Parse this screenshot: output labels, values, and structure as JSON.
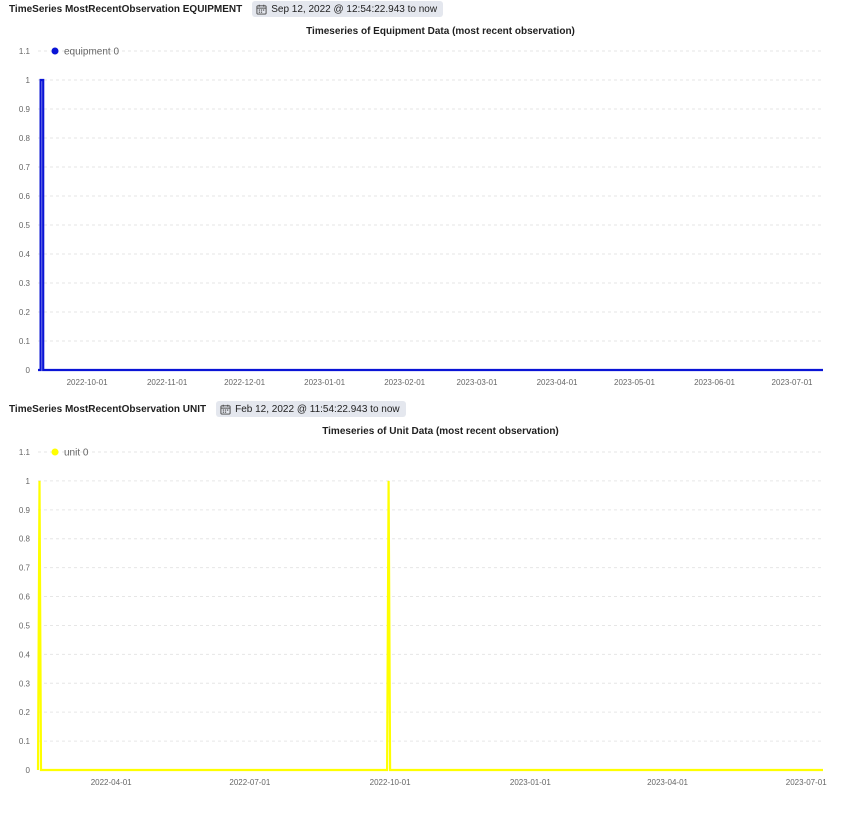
{
  "panels": [
    {
      "header_title": "TimeSeries MostRecentObservation EQUIPMENT",
      "range_label": "Sep 12, 2022 @ 12:54:22.943 to now",
      "range_icon": "calendar-icon"
    },
    {
      "header_title": "TimeSeries MostRecentObservation UNIT",
      "range_label": "Feb 12, 2022 @ 11:54:22.943 to now",
      "range_icon": "calendar-icon"
    }
  ],
  "chart_data": [
    {
      "type": "line",
      "title": "Timeseries of Equipment Data (most recent observation)",
      "xlabel": "",
      "ylabel": "",
      "xlim": [
        "2022-09-12",
        "2023-07-13"
      ],
      "ylim": [
        0,
        1.1
      ],
      "y_ticks": [
        "0",
        "0.1",
        "0.2",
        "0.3",
        "0.4",
        "0.5",
        "0.6",
        "0.7",
        "0.8",
        "0.9",
        "1",
        "1.1"
      ],
      "x_ticks": [
        "2022-10-01",
        "2022-11-01",
        "2022-12-01",
        "2023-01-01",
        "2023-02-01",
        "2023-03-01",
        "2023-04-01",
        "2023-05-01",
        "2023-06-01",
        "2023-07-01"
      ],
      "grid": true,
      "legend_position": "top-left",
      "series": [
        {
          "name": "equipment 0",
          "color": "#0a14d6",
          "x": [
            "2022-09-12",
            "2022-09-13",
            "2022-09-13",
            "2022-09-14",
            "2022-09-14",
            "2023-07-13"
          ],
          "y": [
            0,
            0,
            1,
            1,
            0,
            0
          ]
        }
      ]
    },
    {
      "type": "line",
      "title": "Timeseries of Unit Data (most recent observation)",
      "xlabel": "",
      "ylabel": "",
      "xlim": [
        "2022-02-12",
        "2023-07-12"
      ],
      "ylim": [
        0,
        1.1
      ],
      "y_ticks": [
        "0",
        "0.1",
        "0.2",
        "0.3",
        "0.4",
        "0.5",
        "0.6",
        "0.7",
        "0.8",
        "0.9",
        "1",
        "1.1"
      ],
      "x_ticks": [
        "2022-04-01",
        "2022-07-01",
        "2022-10-01",
        "2023-01-01",
        "2023-04-01",
        "2023-07-01"
      ],
      "grid": true,
      "legend_position": "top-left",
      "series": [
        {
          "name": "unit 0",
          "color": "#ffff00",
          "x": [
            "2022-02-12",
            "2022-02-13",
            "2022-02-14",
            "2022-02-15",
            "2022-09-29",
            "2022-09-30",
            "2022-10-01",
            "2023-07-12"
          ],
          "y": [
            0,
            1,
            0,
            0,
            0,
            1,
            0,
            0
          ]
        }
      ]
    }
  ]
}
